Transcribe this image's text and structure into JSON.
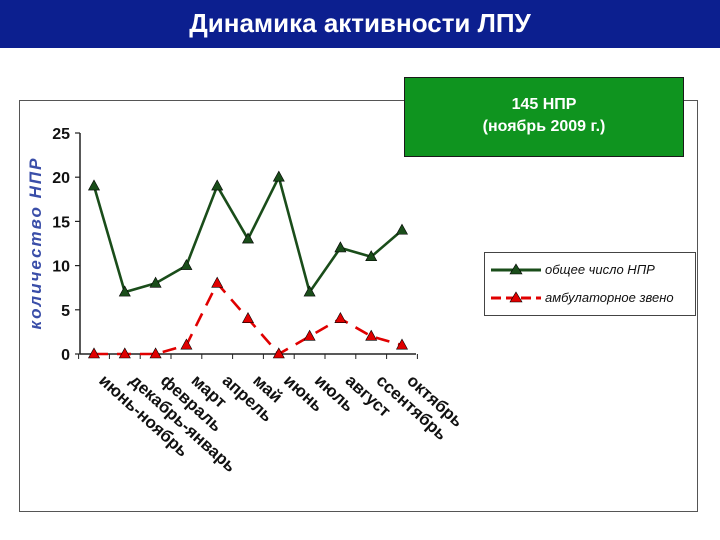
{
  "slide": {
    "title": "Динамика активности ЛПУ"
  },
  "callout": {
    "line1": "145 НПР",
    "line2": "(ноябрь 2009 г.)",
    "bg": "#0f941f"
  },
  "chart_data": {
    "type": "line",
    "categories": [
      "июнь-ноябрь",
      "декабрь-январь",
      "февраль",
      "март",
      "апрель",
      "май",
      "июнь",
      "июль",
      "август",
      "ссентябрь",
      "октябрь"
    ],
    "series": [
      {
        "name": "общее число НПР",
        "values": [
          19,
          7,
          8,
          10,
          19,
          13,
          20,
          7,
          12,
          11,
          14
        ],
        "color": "#1a4d1a",
        "style": "solid",
        "marker": "triangle"
      },
      {
        "name": "амбулаторное звено",
        "values": [
          0,
          0,
          0,
          1,
          8,
          4,
          0,
          2,
          4,
          2,
          1
        ],
        "color": "#e00000",
        "style": "dashed",
        "marker": "triangle"
      }
    ],
    "ylabel": "количество НПР",
    "xlabel": "",
    "ylim": [
      0,
      25
    ],
    "yticks": [
      "0",
      "5",
      "10",
      "15",
      "20",
      "25"
    ],
    "grid": false,
    "legend_position": "right"
  }
}
